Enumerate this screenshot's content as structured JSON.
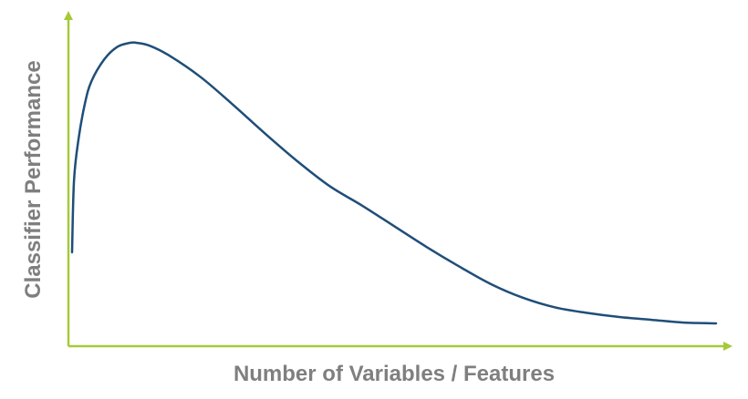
{
  "chart_data": {
    "type": "line",
    "title": "",
    "xlabel": "Number of Variables / Features",
    "ylabel": "Classifier Performance",
    "grid": false,
    "legend": "none",
    "axis_color": "#a6c93a",
    "label_color": "#7f7f7f",
    "series": [
      {
        "color": "#1f4e79",
        "x": [
          0,
          0.3,
          1,
          2,
          3,
          5,
          7,
          9,
          10,
          12,
          15,
          20,
          25,
          30,
          35,
          40,
          45,
          50,
          55,
          60,
          65,
          70,
          75,
          80,
          85,
          90,
          95,
          100
        ],
        "y": [
          24,
          50,
          65,
          78,
          86,
          94,
          98.5,
          100,
          100,
          99,
          95.5,
          87.5,
          77.5,
          67,
          57,
          48,
          41,
          33.5,
          26,
          19,
          12.5,
          7.5,
          4,
          2,
          0.5,
          -0.5,
          -1.5,
          -1.8
        ]
      }
    ]
  }
}
